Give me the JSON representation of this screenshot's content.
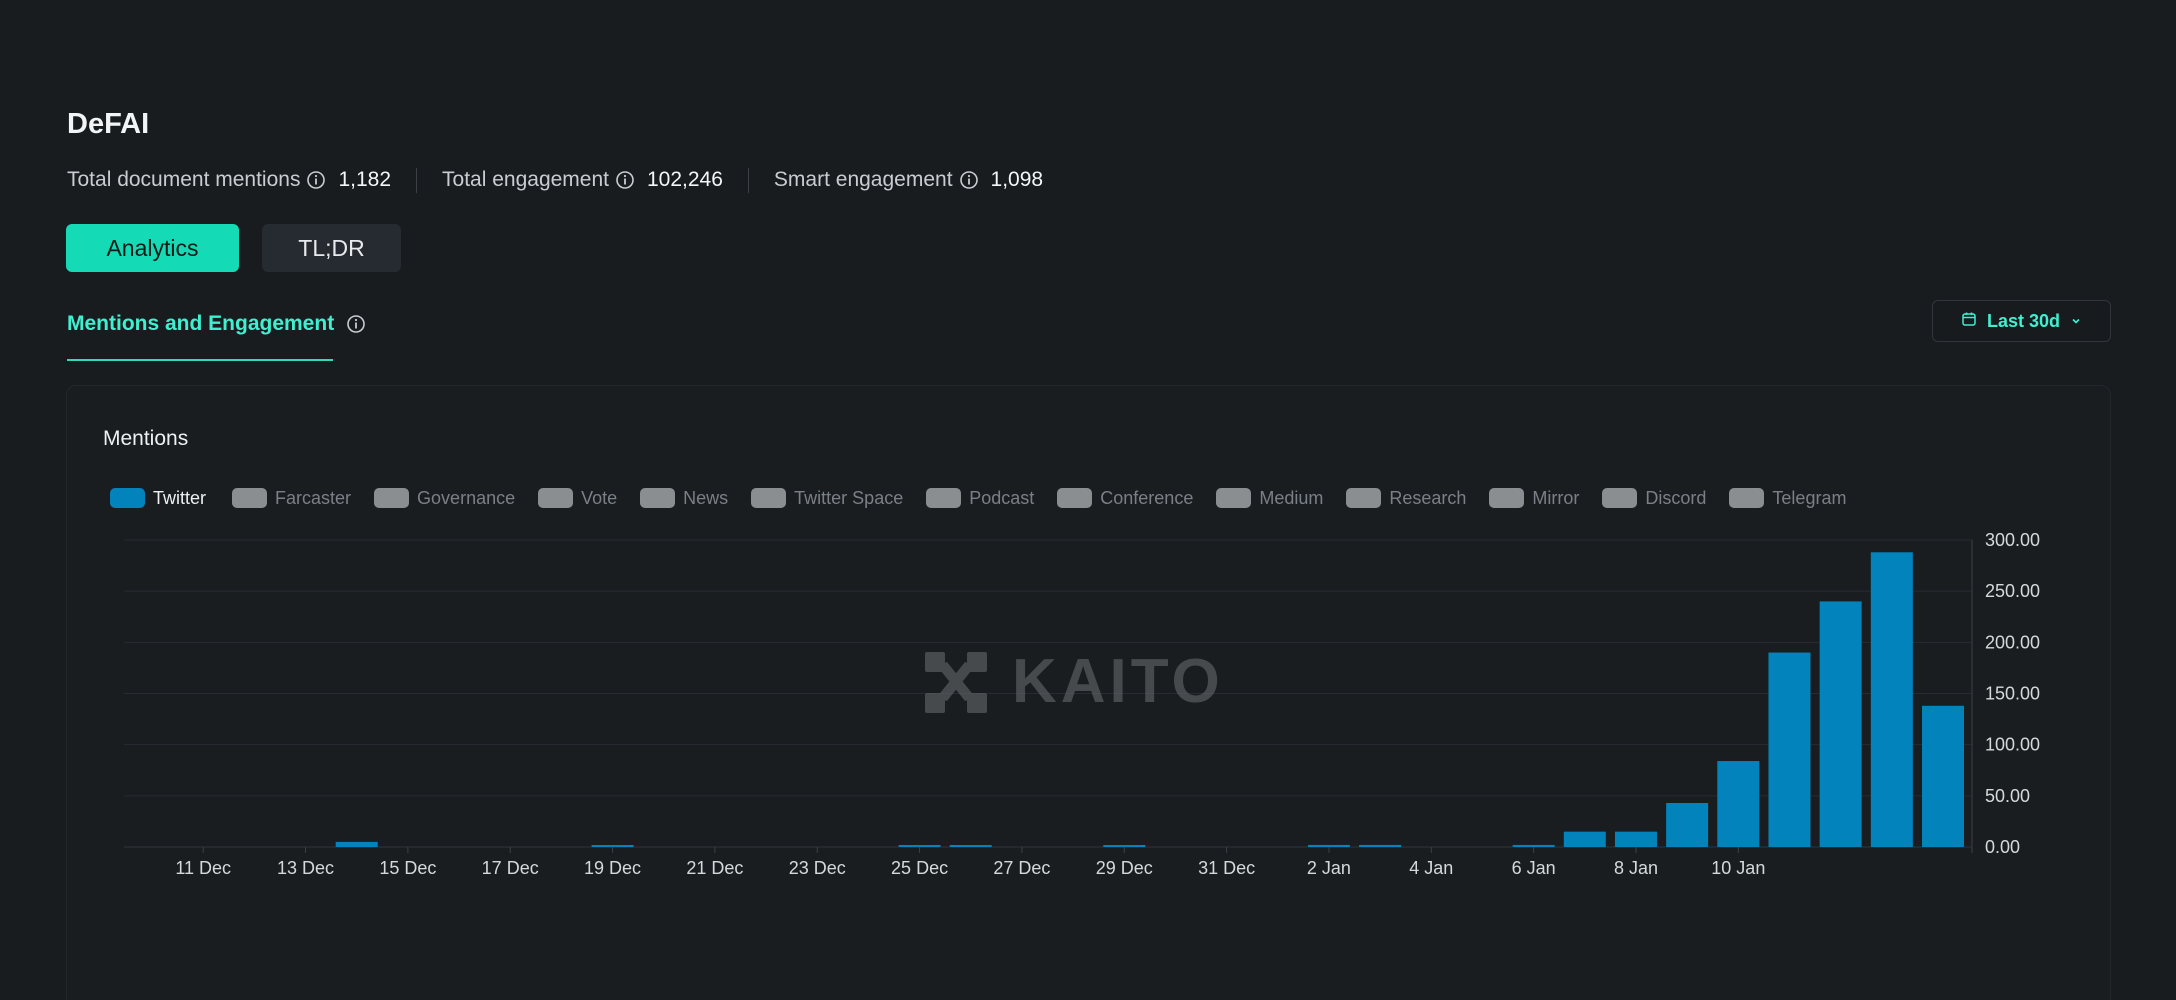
{
  "page": {
    "title": "DeFAI"
  },
  "stats": [
    {
      "label": "Total document mentions",
      "value": "1,182"
    },
    {
      "label": "Total engagement",
      "value": "102,246"
    },
    {
      "label": "Smart engagement",
      "value": "1,098"
    }
  ],
  "tabs": {
    "analytics": "Analytics",
    "tldr": "TL;DR"
  },
  "section": {
    "tab_label": "Mentions and Engagement"
  },
  "range": {
    "label": "Last 30d"
  },
  "card": {
    "title": "Mentions"
  },
  "legend": [
    {
      "label": "Twitter",
      "active": true
    },
    {
      "label": "Farcaster",
      "active": false
    },
    {
      "label": "Governance",
      "active": false
    },
    {
      "label": "Vote",
      "active": false
    },
    {
      "label": "News",
      "active": false
    },
    {
      "label": "Twitter Space",
      "active": false
    },
    {
      "label": "Podcast",
      "active": false
    },
    {
      "label": "Conference",
      "active": false
    },
    {
      "label": "Medium",
      "active": false
    },
    {
      "label": "Research",
      "active": false
    },
    {
      "label": "Mirror",
      "active": false
    },
    {
      "label": "Discord",
      "active": false
    },
    {
      "label": "Telegram",
      "active": false
    }
  ],
  "watermark": "KAITO",
  "colors": {
    "accent": "#14dbb6",
    "bar": "#0383bb",
    "background": "#181c1f"
  },
  "chart_data": {
    "type": "bar",
    "series": [
      {
        "name": "Twitter",
        "values": [
          0,
          0,
          0,
          0,
          5,
          0,
          0,
          0,
          0,
          1,
          0,
          0,
          0,
          0,
          0,
          1,
          1,
          0,
          0,
          1,
          0,
          0,
          0,
          2,
          2,
          0,
          0,
          2,
          15,
          15,
          43,
          84,
          190,
          240,
          288,
          138
        ]
      }
    ],
    "x_tick_labels": [
      "11 Dec",
      "13 Dec",
      "15 Dec",
      "17 Dec",
      "19 Dec",
      "21 Dec",
      "23 Dec",
      "25 Dec",
      "27 Dec",
      "29 Dec",
      "31 Dec",
      "2 Jan",
      "4 Jan",
      "6 Jan",
      "8 Jan",
      "10 Jan"
    ],
    "y_ticks": [
      "300.00",
      "250.00",
      "200.00",
      "150.00",
      "100.00",
      "50.00",
      "0.00"
    ],
    "ylim": [
      0,
      300
    ],
    "grid": true,
    "y_axis_position": "right"
  }
}
